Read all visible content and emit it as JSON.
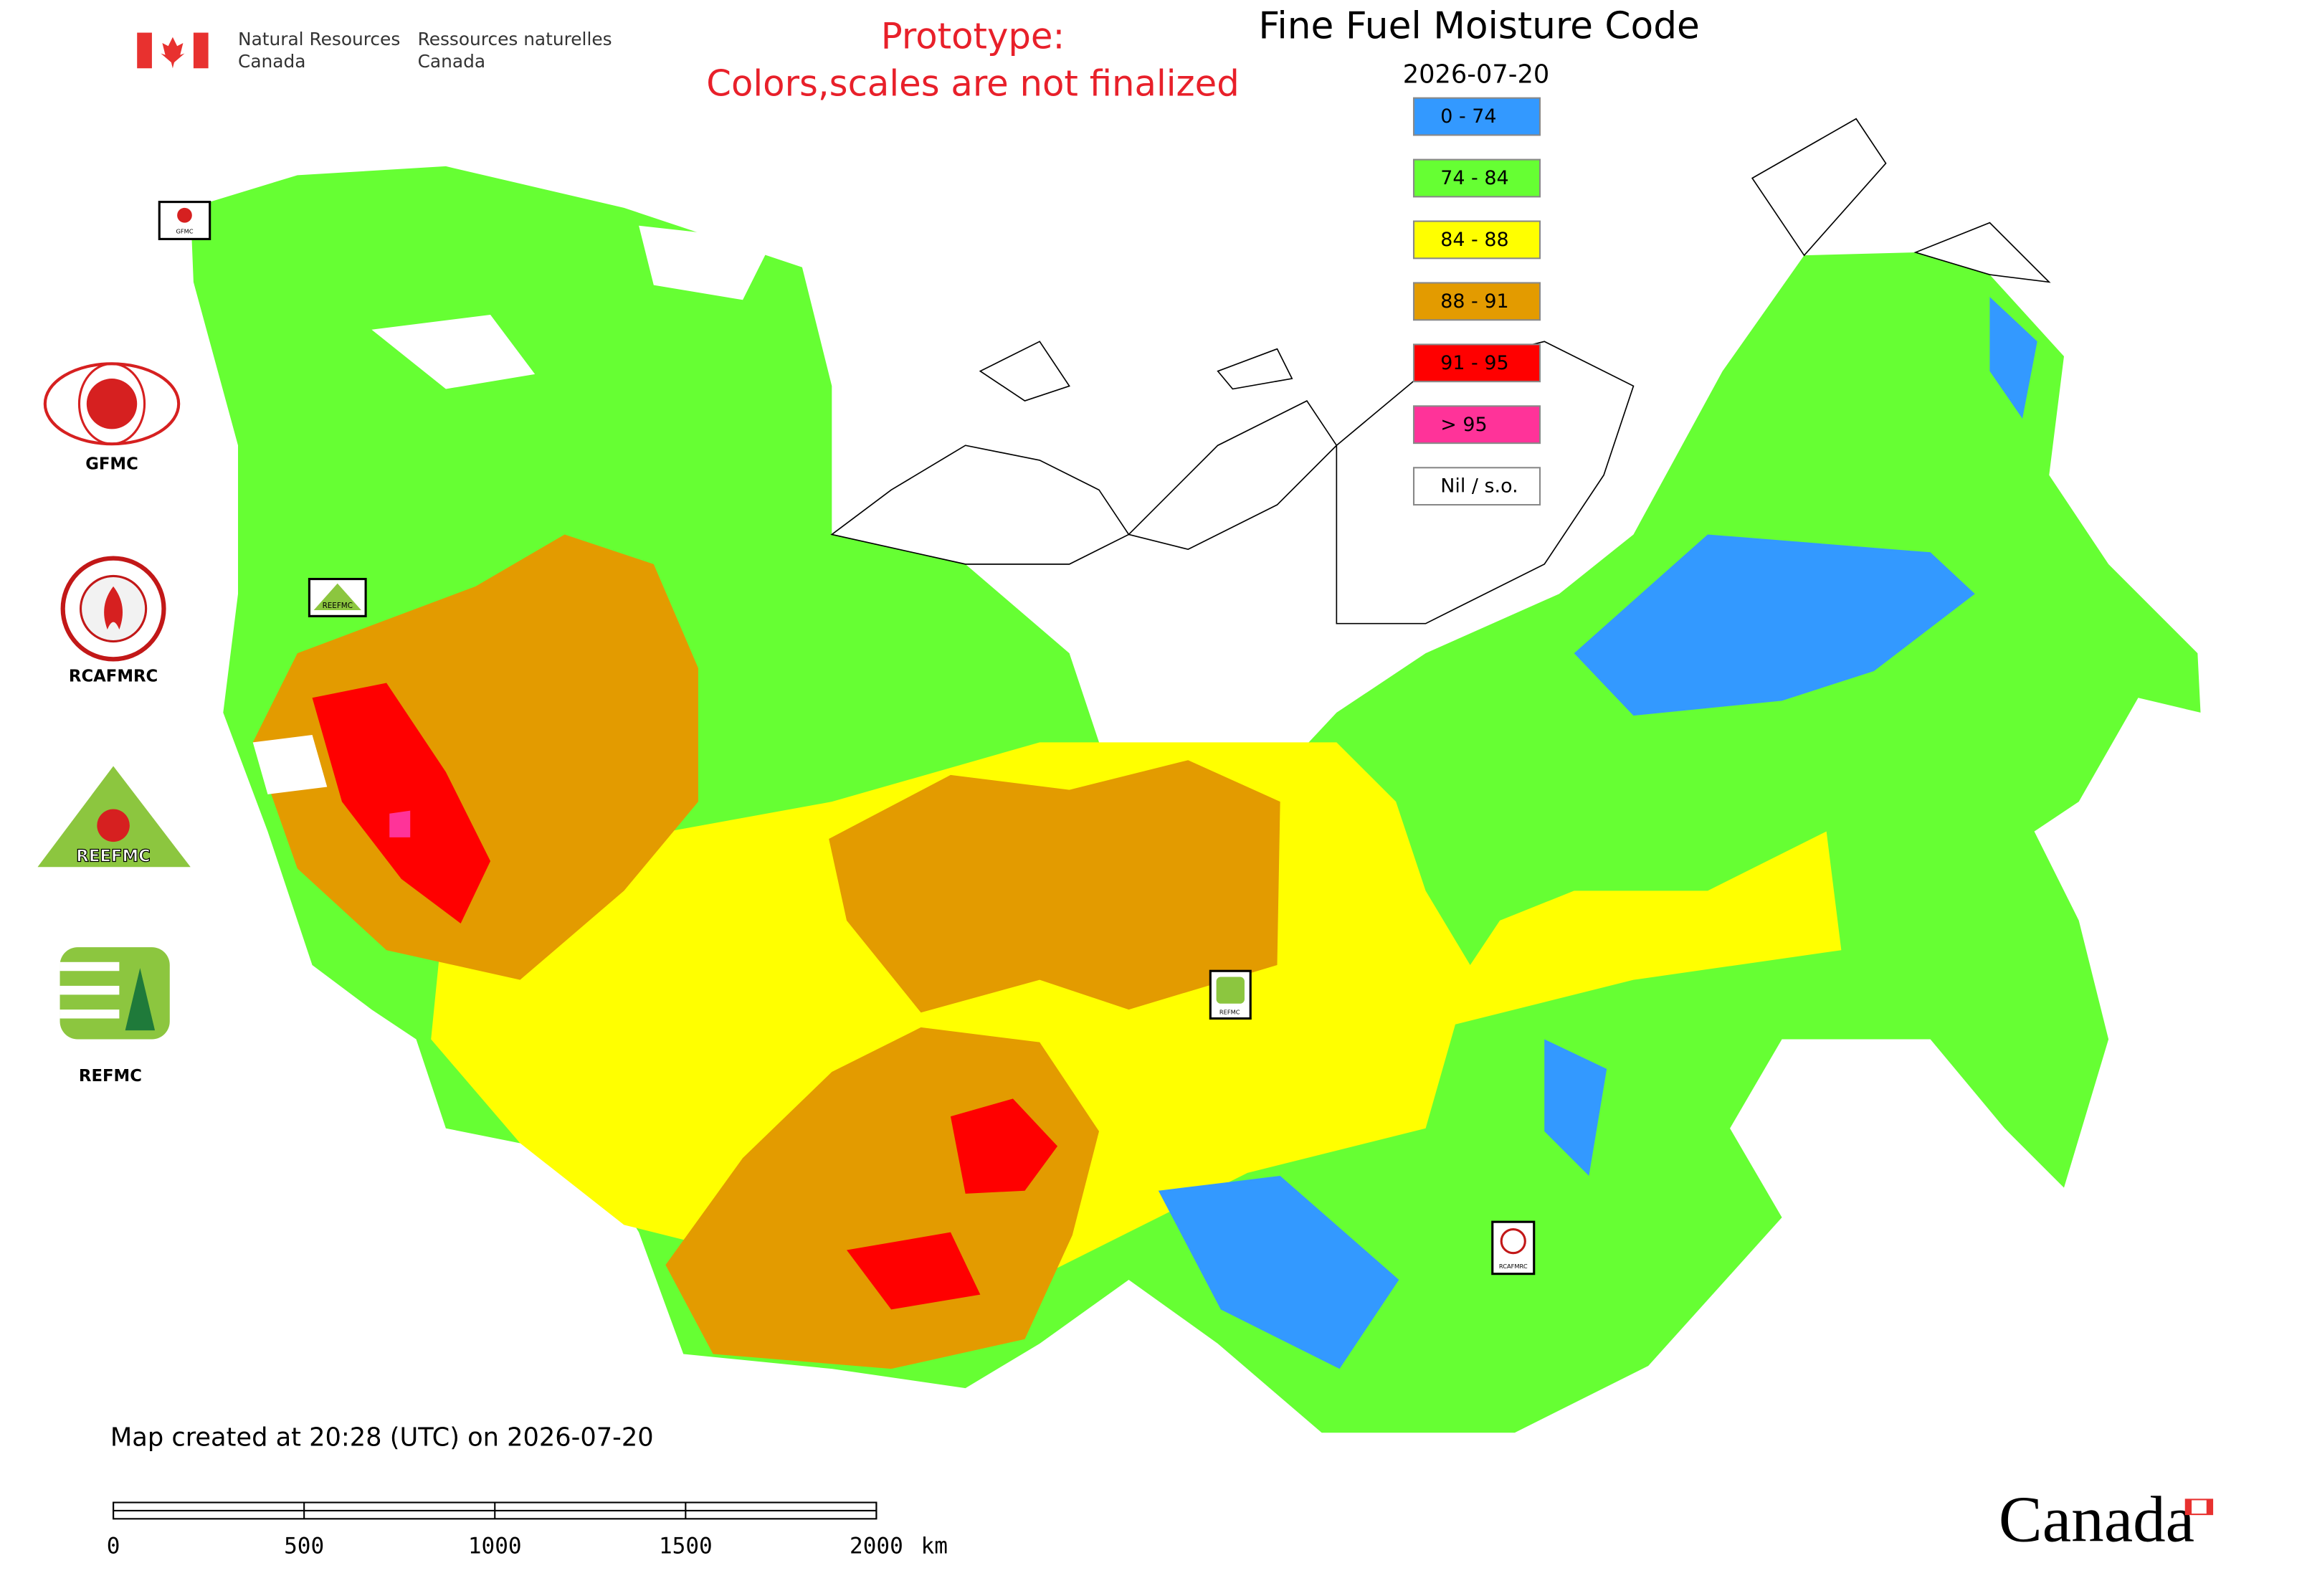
{
  "header": {
    "department_en": [
      "Natural Resources",
      "Canada"
    ],
    "department_fr": [
      "Ressources naturelles",
      "Canada"
    ]
  },
  "prototype_notice": [
    "Prototype:",
    "Colors,scales are not finalized"
  ],
  "title": "Fine Fuel Moisture Code",
  "date": "2026-07-20",
  "legend": [
    {
      "label": "0 - 74",
      "color": "#3399ff"
    },
    {
      "label": "74 - 84",
      "color": "#66ff33"
    },
    {
      "label": "84 - 88",
      "color": "#ffff00"
    },
    {
      "label": "88 - 91",
      "color": "#e39b00"
    },
    {
      "label": "91 - 95",
      "color": "#ff0000"
    },
    {
      "label": "> 95",
      "color": "#ff3399"
    },
    {
      "label": "Nil / s.o.",
      "color": "#ffffff"
    }
  ],
  "logos": [
    "GFMC",
    "RCAFMRC",
    "REEFMC",
    "REFMC"
  ],
  "map_markers": [
    "GFMC",
    "REEFMC",
    "REFMC",
    "RCAFMRC"
  ],
  "footer": "Map created at 20:28 (UTC) on 2026-07-20",
  "scale_bar": {
    "ticks": [
      0,
      500,
      1000,
      1500,
      2000
    ],
    "unit": "km"
  },
  "wordmark": "Canada"
}
